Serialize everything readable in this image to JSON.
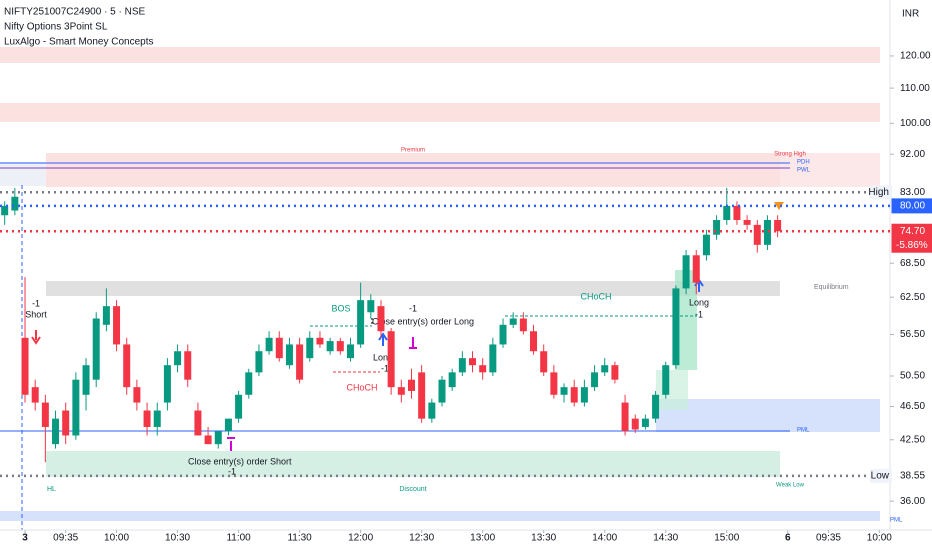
{
  "header": {
    "symbol": "NIFTY251007C24900 · 5 · NSE",
    "indicators": [
      "Nifty Options 3Point SL",
      "LuxAlgo - Smart Money Concepts"
    ],
    "currency": "INR"
  },
  "chart_data": {
    "type": "candlestick",
    "up_color": "#089981",
    "down_color": "#f23645",
    "log_scale": true,
    "ylim": [
      33.3,
      139.6
    ],
    "yticks": [
      {
        "value": 120,
        "label": "120.00"
      },
      {
        "value": 110,
        "label": "110.00"
      },
      {
        "value": 100,
        "label": "100.00"
      },
      {
        "value": 92,
        "label": "92.00"
      },
      {
        "value": 68.5,
        "label": "68.50"
      },
      {
        "value": 62.5,
        "label": "62.50"
      },
      {
        "value": 56.5,
        "label": "56.50"
      },
      {
        "value": 50.5,
        "label": "50.50"
      },
      {
        "value": 46.5,
        "label": "46.50"
      },
      {
        "value": 42.5,
        "label": "42.50"
      },
      {
        "value": 36,
        "label": "36.00"
      }
    ],
    "xlim": [
      -2.46,
      85.05
    ],
    "xticks": [
      {
        "value": 0,
        "label": "3"
      },
      {
        "value": 4,
        "label": "09:35"
      },
      {
        "value": 9,
        "label": "10:00"
      },
      {
        "value": 15,
        "label": "10:30"
      },
      {
        "value": 21,
        "label": "11:00"
      },
      {
        "value": 27,
        "label": "11:30"
      },
      {
        "value": 33,
        "label": "12:00"
      },
      {
        "value": 39,
        "label": "12:30"
      },
      {
        "value": 45,
        "label": "13:00"
      },
      {
        "value": 51,
        "label": "13:30"
      },
      {
        "value": 57,
        "label": "14:00"
      },
      {
        "value": 63,
        "label": "14:30"
      },
      {
        "value": 69,
        "label": "15:00"
      },
      {
        "value": 75,
        "label": "6"
      },
      {
        "value": 79,
        "label": "09:35"
      },
      {
        "value": 84,
        "label": "10:00"
      }
    ],
    "x": [
      -2,
      -1,
      0,
      1,
      2,
      3,
      4,
      5,
      6,
      7,
      8,
      9,
      10,
      11,
      12,
      13,
      14,
      15,
      16,
      17,
      18,
      19,
      20,
      21,
      22,
      23,
      24,
      25,
      26,
      27,
      28,
      29,
      30,
      31,
      32,
      33,
      34,
      35,
      36,
      37,
      38,
      39,
      40,
      41,
      42,
      43,
      44,
      45,
      46,
      47,
      48,
      49,
      50,
      51,
      52,
      53,
      54,
      55,
      56,
      57,
      58,
      59,
      60,
      61,
      62,
      63,
      64,
      65,
      66,
      67,
      68,
      69,
      70,
      71,
      72,
      73,
      74
    ],
    "open": [
      78,
      79,
      56,
      49,
      47,
      42,
      46,
      43,
      48,
      50,
      58,
      61,
      55,
      49,
      46,
      44,
      47,
      52,
      54,
      46,
      43,
      42,
      43.5,
      45,
      48,
      51,
      54,
      56,
      52,
      55,
      53,
      56,
      54,
      55.5,
      53,
      55,
      60,
      61,
      57,
      49,
      50,
      51,
      45,
      47,
      49,
      51,
      53,
      52,
      51,
      55,
      58,
      59,
      57,
      54,
      51,
      48,
      49,
      47,
      49,
      51,
      52,
      47,
      45,
      44,
      45,
      48,
      52,
      64,
      70,
      70,
      74,
      77,
      80,
      77,
      76,
      72,
      77
    ],
    "high": [
      81,
      84,
      66,
      50,
      48,
      46,
      47,
      51,
      53,
      60,
      64,
      62,
      56,
      50,
      47,
      47,
      53,
      55,
      55,
      47,
      44,
      43.5,
      45,
      48.5,
      51.5,
      55,
      57,
      57,
      56,
      56,
      57,
      57,
      56,
      56,
      56,
      65,
      63,
      62,
      57.5,
      50,
      51.5,
      52,
      47.5,
      50.5,
      51.5,
      54,
      54,
      53,
      56,
      59,
      60,
      60,
      58,
      55,
      52,
      49.5,
      50,
      50,
      52,
      53,
      52.5,
      48,
      45.5,
      45.5,
      48.5,
      52.5,
      64.5,
      71,
      71,
      75,
      78,
      84,
      81,
      78,
      77,
      78,
      78
    ],
    "low": [
      76,
      78,
      47,
      46,
      40,
      41.5,
      42,
      42.5,
      46,
      49,
      57,
      54,
      48,
      46,
      43,
      43,
      46,
      51,
      49,
      43,
      42,
      41.5,
      43,
      44.5,
      47.5,
      50.5,
      53.5,
      52.5,
      51.5,
      49.5,
      52.5,
      54.5,
      53.5,
      53.5,
      52.5,
      54.5,
      59,
      56,
      48,
      47,
      47.5,
      44.5,
      44.5,
      46.5,
      48.5,
      50.5,
      51,
      50,
      50.5,
      54.5,
      57.5,
      56.5,
      53.5,
      50.5,
      47.5,
      47,
      46.5,
      46.5,
      48.5,
      50.5,
      49.5,
      43,
      43.3,
      43.7,
      44.5,
      47.5,
      51.5,
      63,
      63,
      69,
      73,
      76,
      76,
      75,
      70.5,
      71,
      73.5
    ],
    "close": [
      80,
      82,
      48,
      47,
      44,
      45,
      43,
      50,
      52,
      59,
      61,
      55,
      49,
      47,
      44,
      46,
      52,
      54,
      50,
      43,
      42,
      43.5,
      45,
      48,
      51,
      54,
      56,
      53,
      55,
      50,
      56,
      55,
      55.5,
      54,
      55,
      62,
      62,
      57,
      49,
      48,
      48.5,
      45,
      47,
      50,
      51,
      53,
      52,
      51,
      55,
      58,
      59,
      57,
      54,
      51,
      48,
      49,
      47,
      49,
      51,
      52,
      50,
      43.5,
      43.7,
      45,
      48,
      52,
      64,
      70,
      65,
      74,
      77,
      80,
      77,
      76,
      72,
      77,
      74.7
    ],
    "levels": [
      {
        "name": "High",
        "value": 83,
        "label": "83.00",
        "color": "#787b86"
      },
      {
        "name": "",
        "value": 80,
        "label": "80.00",
        "color": "#2962ff"
      },
      {
        "name": "",
        "value": 74.7,
        "label": "74.70",
        "color": "#f23645"
      },
      {
        "name": "Low",
        "value": 38.55,
        "label": "38.55",
        "color": "#787b86"
      }
    ],
    "change_label": "-5.86%",
    "annotations": [
      "Premium",
      "Strong High",
      "PDH",
      "PWL",
      "Equilibrium",
      "BOS",
      "CHoCH",
      "CHoCH",
      "Long",
      "Long",
      "-1",
      "-1",
      "Short",
      "Close entry(s) order Long",
      "Close entry(s) order Short",
      "HL",
      "Discount",
      "Weak Low",
      "PML",
      "PML",
      "-1",
      "-1",
      "-1"
    ]
  }
}
